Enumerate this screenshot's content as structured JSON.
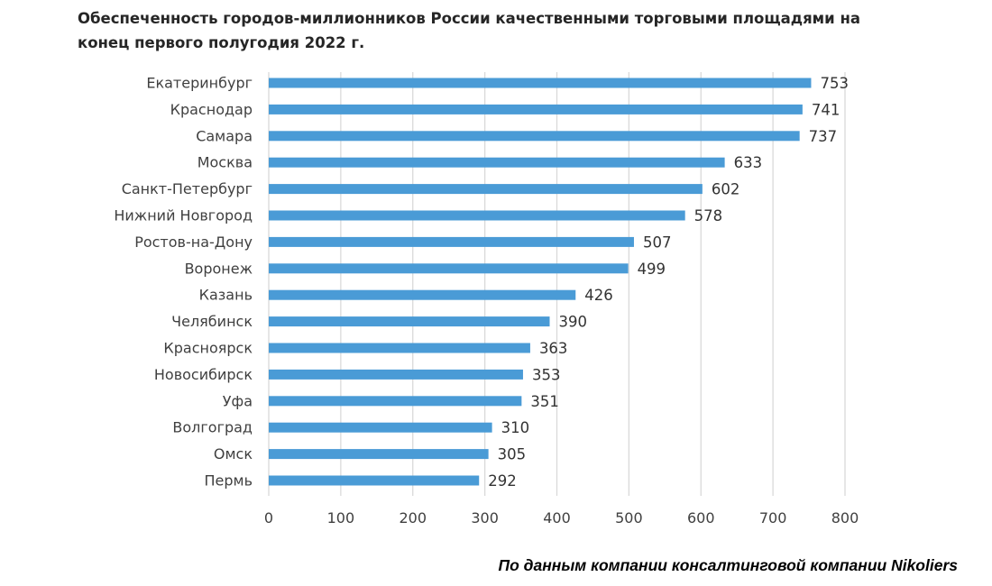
{
  "title": "Обеспеченность городов-миллионников России качественными торговыми площадями на конец первого полугодия 2022 г.",
  "source": "По данным компании консалтинговой компании Nikoliers",
  "colors": {
    "bar": "#4a9bd6",
    "grid": "#d9d9d9",
    "text": "#404040"
  },
  "chart_data": {
    "type": "bar",
    "orientation": "horizontal",
    "title": "Обеспеченность городов-миллионников России качественными торговыми площадями на конец первого полугодия 2022 г.",
    "categories": [
      "Екатеринбург",
      "Краснодар",
      "Самара",
      "Москва",
      "Санкт-Петербург",
      "Нижний Новгород",
      "Ростов-на-Дону",
      "Воронеж",
      "Казань",
      "Челябинск",
      "Красноярск",
      "Новосибирск",
      "Уфа",
      "Волгоград",
      "Омск",
      "Пермь"
    ],
    "values": [
      753,
      741,
      737,
      633,
      602,
      578,
      507,
      499,
      426,
      390,
      363,
      353,
      351,
      310,
      305,
      292
    ],
    "data_labels": [
      "753",
      "741",
      "737",
      "633",
      "602",
      "578",
      "507",
      "499",
      "426",
      "390",
      "363",
      "353",
      "351",
      "310",
      "305",
      "292"
    ],
    "xlim": [
      0,
      800
    ],
    "xticks": [
      "0",
      "100",
      "200",
      "300",
      "400",
      "500",
      "600",
      "700",
      "800"
    ],
    "xlabel": "",
    "ylabel": "",
    "grid": "vertical",
    "legend": "none"
  }
}
